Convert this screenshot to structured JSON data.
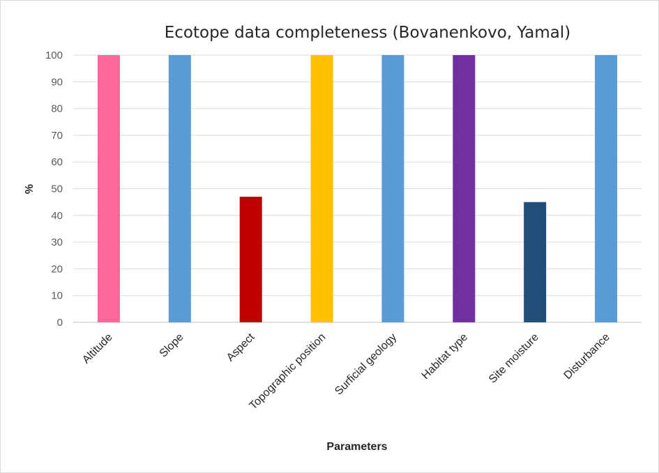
{
  "chart_data": {
    "type": "bar",
    "title": "Ecotope data completeness (Bovanenkovo, Yamal)",
    "xlabel": "Parameters",
    "ylabel": "%",
    "ylim": [
      0,
      100
    ],
    "yticks": [
      0,
      10,
      20,
      30,
      40,
      50,
      60,
      70,
      80,
      90,
      100
    ],
    "grid": true,
    "legend": "none",
    "categories": [
      "Altitude",
      "Slope",
      "Aspect",
      "Topographic position",
      "Surficial geology",
      "Habitat type",
      "Site moisture",
      "Disturbance"
    ],
    "values": [
      100,
      100,
      47,
      100,
      100,
      100,
      45,
      100
    ],
    "colors": [
      "#ff6699",
      "#5b9bd5",
      "#c00000",
      "#ffc000",
      "#5b9bd5",
      "#7030a0",
      "#1f4e79",
      "#5b9bd5"
    ]
  }
}
